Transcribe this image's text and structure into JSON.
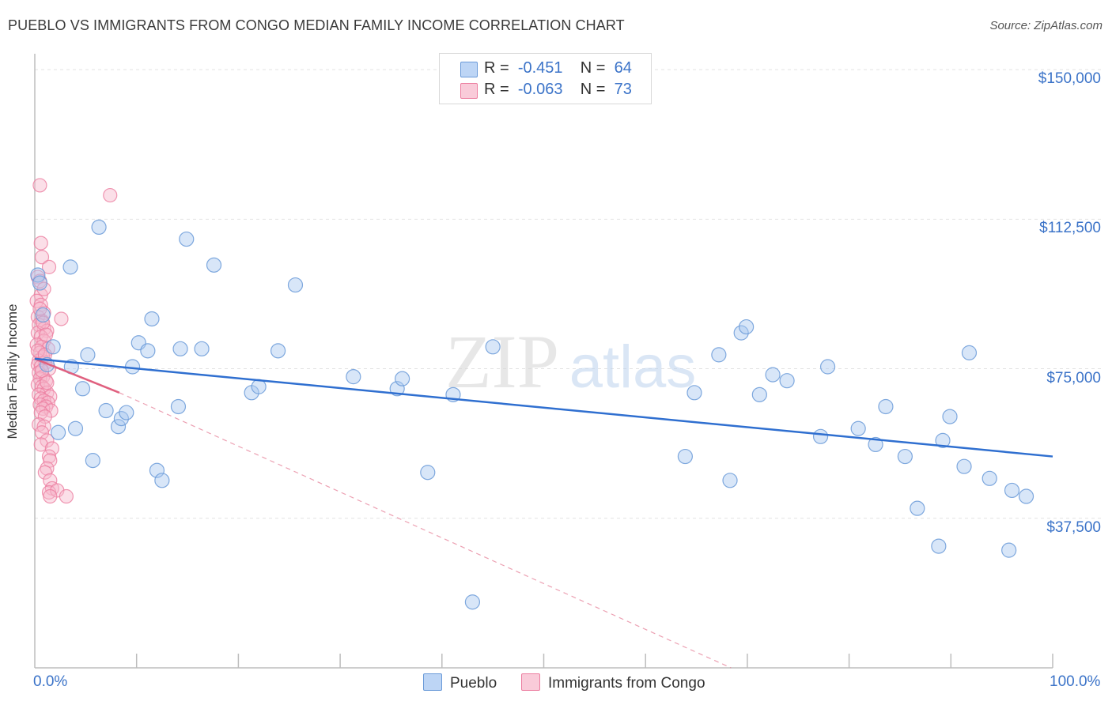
{
  "title": "PUEBLO VS IMMIGRANTS FROM CONGO MEDIAN FAMILY INCOME CORRELATION CHART",
  "source": "Source: ZipAtlas.com",
  "watermark": {
    "zip": "ZIP",
    "atlas": "atlas"
  },
  "legend_top": [
    {
      "r_label": "R =",
      "r_value": "-0.451",
      "n_label": "N =",
      "n_value": "64"
    },
    {
      "r_label": "R =",
      "r_value": "-0.063",
      "n_label": "N =",
      "n_value": "73"
    }
  ],
  "legend_bottom": [
    {
      "label": "Pueblo"
    },
    {
      "label": "Immigrants from Congo"
    }
  ],
  "colors": {
    "blue_fill": "#a9c8f0",
    "blue_stroke": "#6a9ad8",
    "blue_line": "#2f6fd0",
    "pink_fill": "#f6b8cc",
    "pink_stroke": "#ec7ea0",
    "pink_line": "#e0607f",
    "axis_text": "#3b73c8",
    "grid": "#e2e2e2"
  },
  "chart_data": {
    "type": "scatter",
    "title": "PUEBLO VS IMMIGRANTS FROM CONGO MEDIAN FAMILY INCOME CORRELATION CHART",
    "xlabel": "",
    "ylabel": "Median Family Income",
    "xlim": [
      0,
      100
    ],
    "ylim": [
      0,
      152000
    ],
    "y_ticks": [
      {
        "value": 37500,
        "label": "$37,500"
      },
      {
        "value": 75000,
        "label": "$75,000"
      },
      {
        "value": 112500,
        "label": "$112,500"
      },
      {
        "value": 150000,
        "label": "$150,000"
      }
    ],
    "x_ticks": [
      {
        "value": 0,
        "label": "0.0%"
      },
      {
        "value": 100,
        "label": "100.0%"
      }
    ],
    "x_minor_ticks": [
      10,
      20,
      30,
      40,
      50,
      60,
      70,
      80,
      90,
      100
    ],
    "grid": true,
    "series": [
      {
        "name": "Pueblo",
        "color": "blue",
        "points": [
          [
            0.3,
            98500
          ],
          [
            0.8,
            88500
          ],
          [
            1.8,
            80500
          ],
          [
            2.3,
            59000
          ],
          [
            3.6,
            75500
          ],
          [
            3.5,
            100500
          ],
          [
            4.0,
            60000
          ],
          [
            4.7,
            70000
          ],
          [
            5.2,
            78500
          ],
          [
            5.7,
            52000
          ],
          [
            6.3,
            110500
          ],
          [
            7.0,
            64500
          ],
          [
            8.2,
            60500
          ],
          [
            8.5,
            62500
          ],
          [
            9.0,
            64000
          ],
          [
            9.6,
            75500
          ],
          [
            10.2,
            81500
          ],
          [
            11.1,
            79500
          ],
          [
            11.5,
            87500
          ],
          [
            12.0,
            49500
          ],
          [
            12.5,
            47000
          ],
          [
            14.1,
            65500
          ],
          [
            14.3,
            80000
          ],
          [
            14.9,
            107500
          ],
          [
            16.4,
            80000
          ],
          [
            17.6,
            101000
          ],
          [
            21.3,
            69000
          ],
          [
            22.0,
            70500
          ],
          [
            23.9,
            79500
          ],
          [
            25.6,
            96000
          ],
          [
            31.3,
            73000
          ],
          [
            35.6,
            70000
          ],
          [
            36.1,
            72500
          ],
          [
            38.6,
            49000
          ],
          [
            41.1,
            68500
          ],
          [
            43.0,
            16500
          ],
          [
            45.0,
            80500
          ],
          [
            63.9,
            53000
          ],
          [
            64.8,
            69000
          ],
          [
            67.2,
            78500
          ],
          [
            68.3,
            47000
          ],
          [
            69.4,
            84000
          ],
          [
            69.9,
            85500
          ],
          [
            71.2,
            68500
          ],
          [
            72.5,
            73500
          ],
          [
            73.9,
            72000
          ],
          [
            77.2,
            58000
          ],
          [
            77.9,
            75500
          ],
          [
            80.9,
            60000
          ],
          [
            82.6,
            56000
          ],
          [
            83.6,
            65500
          ],
          [
            85.5,
            53000
          ],
          [
            86.7,
            40000
          ],
          [
            88.8,
            30500
          ],
          [
            89.2,
            57000
          ],
          [
            89.9,
            63000
          ],
          [
            91.3,
            50500
          ],
          [
            91.8,
            79000
          ],
          [
            93.8,
            47500
          ],
          [
            96.0,
            44500
          ],
          [
            97.4,
            43000
          ],
          [
            95.7,
            29500
          ],
          [
            0.5,
            96500
          ],
          [
            1.2,
            76000
          ]
        ],
        "trend": {
          "x": [
            0,
            100
          ],
          "y": [
            77500,
            53000
          ]
        }
      },
      {
        "name": "Immigrants from Congo",
        "color": "pink",
        "points": [
          [
            0.5,
            121000
          ],
          [
            7.4,
            118500
          ],
          [
            0.6,
            106500
          ],
          [
            0.7,
            103000
          ],
          [
            1.4,
            100500
          ],
          [
            0.3,
            98000
          ],
          [
            0.5,
            97000
          ],
          [
            0.6,
            93500
          ],
          [
            0.2,
            92000
          ],
          [
            0.6,
            91000
          ],
          [
            0.9,
            89000
          ],
          [
            0.3,
            88000
          ],
          [
            2.6,
            87500
          ],
          [
            0.7,
            87000
          ],
          [
            0.4,
            86000
          ],
          [
            0.9,
            85000
          ],
          [
            1.2,
            84500
          ],
          [
            0.3,
            84000
          ],
          [
            0.6,
            83000
          ],
          [
            0.9,
            82000
          ],
          [
            0.2,
            81000
          ],
          [
            0.7,
            80500
          ],
          [
            1.3,
            80000
          ],
          [
            0.5,
            79000
          ],
          [
            0.8,
            78000
          ],
          [
            0.4,
            77000
          ],
          [
            1.0,
            76500
          ],
          [
            0.3,
            76000
          ],
          [
            0.6,
            75500
          ],
          [
            1.4,
            75000
          ],
          [
            0.4,
            74000
          ],
          [
            0.8,
            73000
          ],
          [
            0.5,
            72500
          ],
          [
            1.1,
            72000
          ],
          [
            0.3,
            71000
          ],
          [
            0.7,
            70500
          ],
          [
            0.9,
            70000
          ],
          [
            1.2,
            69000
          ],
          [
            0.4,
            68500
          ],
          [
            1.5,
            68000
          ],
          [
            0.6,
            67500
          ],
          [
            0.9,
            67000
          ],
          [
            1.3,
            66500
          ],
          [
            0.5,
            66000
          ],
          [
            1.1,
            65500
          ],
          [
            0.8,
            65000
          ],
          [
            1.6,
            64500
          ],
          [
            0.6,
            64000
          ],
          [
            1.0,
            63000
          ],
          [
            0.4,
            61000
          ],
          [
            0.9,
            60500
          ],
          [
            0.7,
            59000
          ],
          [
            1.2,
            57000
          ],
          [
            0.6,
            56000
          ],
          [
            1.7,
            55000
          ],
          [
            1.4,
            53000
          ],
          [
            1.5,
            52000
          ],
          [
            1.2,
            50000
          ],
          [
            1.0,
            49000
          ],
          [
            1.5,
            47000
          ],
          [
            1.7,
            45000
          ],
          [
            1.4,
            44000
          ],
          [
            2.2,
            44500
          ],
          [
            1.5,
            43000
          ],
          [
            3.1,
            43000
          ],
          [
            0.9,
            95000
          ],
          [
            0.5,
            90000
          ],
          [
            0.8,
            86500
          ],
          [
            1.1,
            83500
          ],
          [
            0.3,
            79500
          ],
          [
            1.0,
            78500
          ],
          [
            0.7,
            74500
          ],
          [
            1.2,
            71500
          ]
        ],
        "trend": {
          "x": [
            0,
            8.3
          ],
          "y": [
            77500,
            69000
          ]
        },
        "trend_extension": {
          "x": [
            8.3,
            68.4
          ],
          "y": [
            69000,
            0
          ]
        }
      }
    ]
  }
}
